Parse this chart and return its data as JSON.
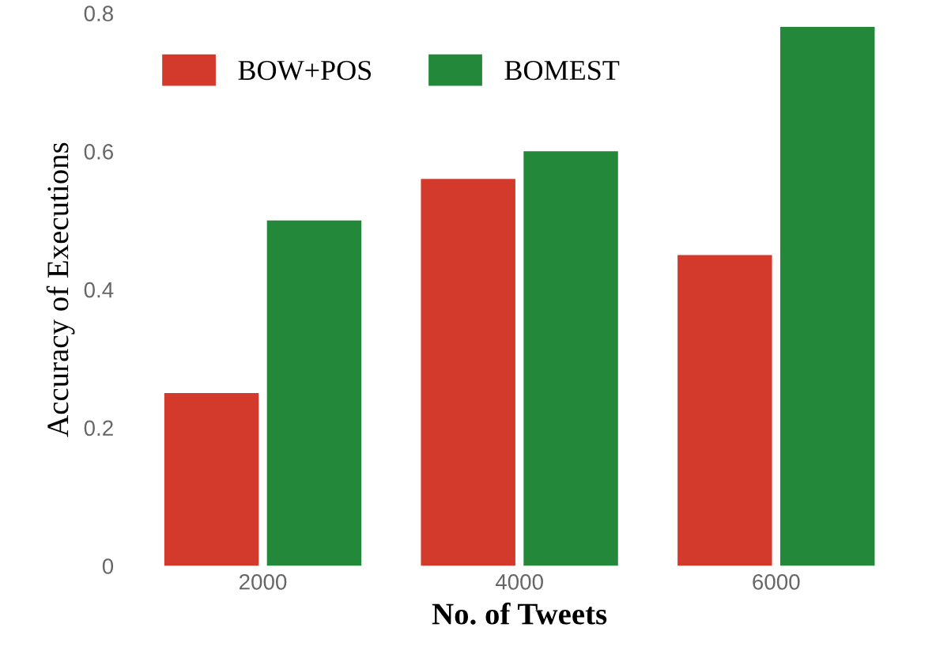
{
  "chart_data": {
    "type": "bar",
    "xlabel": "No. of Tweets",
    "ylabel": "Accuracy of Executions",
    "categories": [
      "2000",
      "4000",
      "6000"
    ],
    "series": [
      {
        "name": "BOW+POS",
        "color": "#d43a2c",
        "values": [
          0.25,
          0.56,
          0.45
        ]
      },
      {
        "name": "BOMEST",
        "color": "#23883a",
        "values": [
          0.5,
          0.6,
          0.78
        ]
      }
    ],
    "ylim": [
      0,
      0.8
    ],
    "yticks": [
      0,
      0.2,
      0.4,
      0.6,
      0.8
    ],
    "grid": false,
    "legend": "top left"
  }
}
